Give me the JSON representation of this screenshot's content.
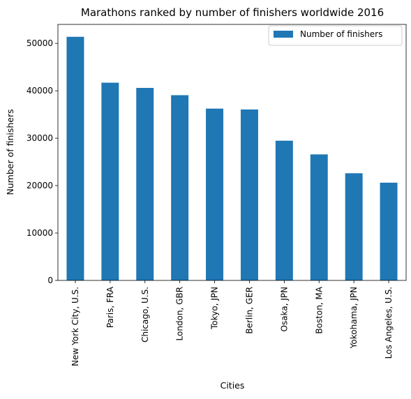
{
  "chart_data": {
    "type": "bar",
    "title": "Marathons ranked by number of finishers worldwide 2016",
    "xlabel": "Cities",
    "ylabel": "Number of finishers",
    "categories": [
      "New York City, U.S.",
      "Paris, FRA",
      "Chicago, U.S.",
      "London, GBR",
      "Tokyo, JPN",
      "Berlin, GER",
      "Osaka, JPN",
      "Boston, MA",
      "Yokohama, JPN",
      "Los Angeles, U.S."
    ],
    "series": [
      {
        "name": "Number of finishers",
        "color": "#1f77b4",
        "values": [
          51388,
          41708,
          40608,
          39072,
          36240,
          36054,
          29472,
          26581,
          22608,
          20617
        ]
      }
    ],
    "ylim": [
      0,
      54000
    ],
    "yticks": [
      0,
      10000,
      20000,
      30000,
      40000,
      50000
    ],
    "grid": false,
    "legend_position": "top-right"
  }
}
